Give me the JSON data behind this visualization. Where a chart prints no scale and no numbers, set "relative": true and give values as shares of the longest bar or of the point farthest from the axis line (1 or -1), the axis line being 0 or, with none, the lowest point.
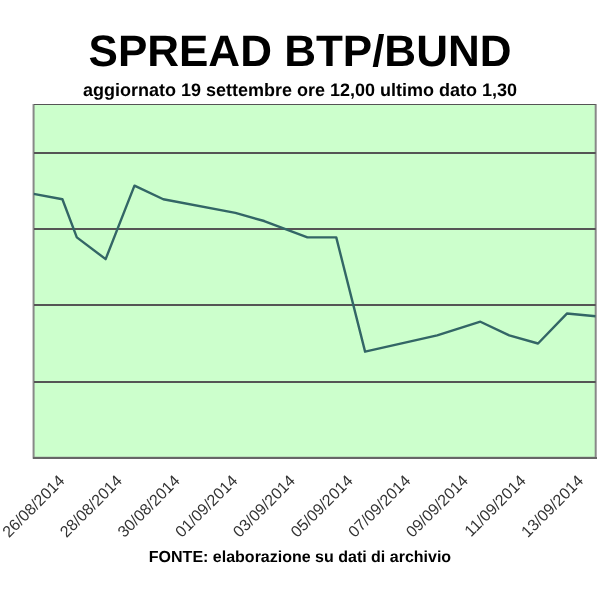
{
  "chart_data": {
    "type": "line",
    "title": "SPREAD BTP/BUND",
    "subtitle": "aggiornato 19 settembre ore 12,00 ultimo dato 1,30",
    "annotations": [
      "FONTE: elaborazione su dati di archivio"
    ],
    "x": [
      "2014-08-25",
      "2014-08-26",
      "2014-08-26T12:00",
      "2014-08-27T12:00",
      "2014-08-28T12:00",
      "2014-08-29T12:00",
      "2014-09-01",
      "2014-09-02",
      "2014-09-03T12:00",
      "2014-09-04T12:00",
      "2014-09-05T12:00",
      "2014-09-08",
      "2014-09-09T12:00",
      "2014-09-10T12:00",
      "2014-09-11T12:00",
      "2014-09-12T12:00",
      "2014-09-13T12:00"
    ],
    "series": [
      {
        "color": "#336666",
        "values": [
          0.97,
          0.95,
          0.81,
          0.73,
          1,
          0.95,
          0.9,
          0.87,
          0.81,
          0.81,
          0.39,
          0.45,
          0.5,
          0.45,
          0.42,
          0.53,
          0.52
        ]
      }
    ],
    "relative": true,
    "xlim": [
      "2014-08-25",
      "2014-09-13T12:00"
    ],
    "xticks": [
      {
        "value": "2014-08-26",
        "label": "26/08/2014"
      },
      {
        "value": "2014-08-28",
        "label": "28/08/2014"
      },
      {
        "value": "2014-08-30",
        "label": "30/08/2014"
      },
      {
        "value": "2014-09-01",
        "label": "01/09/2014"
      },
      {
        "value": "2014-09-03",
        "label": "03/09/2014"
      },
      {
        "value": "2014-09-05",
        "label": "05/09/2014"
      },
      {
        "value": "2014-09-07",
        "label": "07/09/2014"
      },
      {
        "value": "2014-09-09",
        "label": "09/09/2014"
      },
      {
        "value": "2014-09-11",
        "label": "11/09/2014"
      },
      {
        "value": "2014-09-13",
        "label": "13/09/2014"
      }
    ],
    "grid": "y",
    "legend": false,
    "marker": "none",
    "line_style": "solid"
  }
}
